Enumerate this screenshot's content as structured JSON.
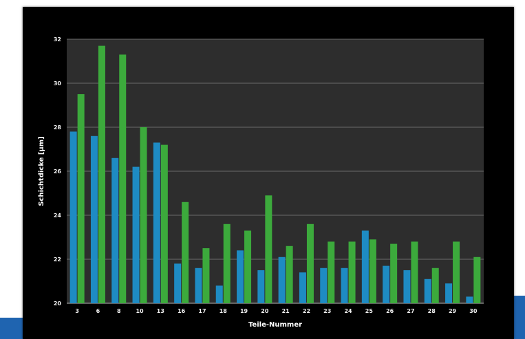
{
  "chart_data": {
    "type": "bar",
    "title": "",
    "xlabel": "Teile-Nummer",
    "ylabel": "Schichtdicke [µm]",
    "ylim": [
      20,
      32
    ],
    "yticks": [
      20,
      22,
      24,
      26,
      28,
      30,
      32
    ],
    "grid": true,
    "categories": [
      "3",
      "6",
      "8",
      "10",
      "13",
      "16",
      "17",
      "18",
      "19",
      "20",
      "21",
      "22",
      "23",
      "24",
      "25",
      "26",
      "27",
      "28",
      "29",
      "30"
    ],
    "series": [
      {
        "color": "#1e8bc3",
        "values": [
          27.8,
          27.6,
          26.6,
          26.2,
          27.3,
          21.8,
          21.6,
          20.8,
          22.4,
          21.5,
          22.1,
          21.4,
          21.6,
          21.6,
          23.3,
          21.7,
          21.5,
          21.1,
          20.9,
          20.3
        ]
      },
      {
        "color": "#3caa3c",
        "values": [
          29.5,
          31.7,
          31.3,
          28.0,
          27.2,
          24.6,
          22.5,
          23.6,
          23.3,
          24.9,
          22.6,
          23.6,
          22.8,
          22.8,
          22.9,
          22.7,
          22.8,
          21.6,
          22.8,
          22.1
        ]
      }
    ]
  },
  "colors": {
    "frame": "#000000",
    "plot_background": "#2d2d2d",
    "gridline": "#6a6a6a",
    "accent_blue": "#1f64b0"
  }
}
